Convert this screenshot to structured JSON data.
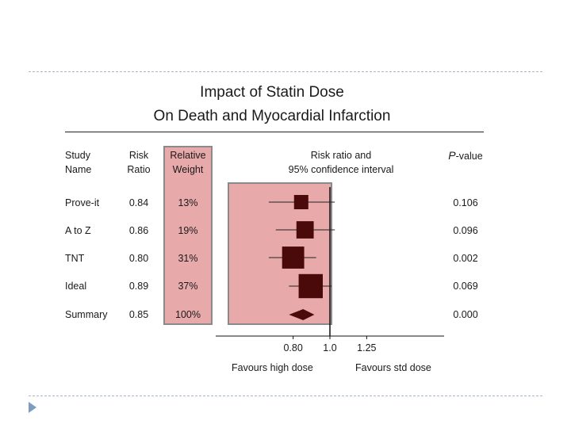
{
  "slide": {
    "title_line1": "Impact of Statin Dose",
    "title_line2": "On Death and Myocardial Infarction"
  },
  "headers": {
    "study_line1": "Study",
    "study_line2": "Name",
    "risk_line1": "Risk",
    "risk_line2": "Ratio",
    "weight_line1": "Relative",
    "weight_line2": "Weight",
    "ci_line1": "Risk ratio and",
    "ci_line2": "95% confidence interval",
    "p_prefix": "P",
    "p_suffix": "-value"
  },
  "rows": [
    {
      "name": "Prove-it",
      "ratio": "0.84",
      "weight": "13%",
      "p": "0.106"
    },
    {
      "name": "A to Z",
      "ratio": "0.86",
      "weight": "19%",
      "p": "0.096"
    },
    {
      "name": "TNT",
      "ratio": "0.80",
      "weight": "31%",
      "p": "0.002"
    },
    {
      "name": "Ideal",
      "ratio": "0.89",
      "weight": "37%",
      "p": "0.069"
    },
    {
      "name": "Summary",
      "ratio": "0.85",
      "weight": "100%",
      "p": "0.000"
    }
  ],
  "axis": {
    "tick_labels": [
      "0.80",
      "1.0",
      "1.25"
    ],
    "favours_left": "Favours high dose",
    "favours_right": "Favours std dose"
  },
  "colors": {
    "panel_fill": "#e8a9ab",
    "marker": "#4a0a0a",
    "dash_rule": "#a9b6c8",
    "bullet": "#7f9bbd"
  },
  "chart_data": {
    "type": "forest",
    "xscale": "log",
    "xlim": [
      0.5,
      2.0
    ],
    "xticks": [
      0.8,
      1.0,
      1.25
    ],
    "reference": 1.0,
    "studies": [
      {
        "name": "Prove-it",
        "rr": 0.84,
        "lo": 0.69,
        "hi": 1.03,
        "weight": 13
      },
      {
        "name": "A to Z",
        "rr": 0.86,
        "lo": 0.72,
        "hi": 1.03,
        "weight": 19
      },
      {
        "name": "TNT",
        "rr": 0.8,
        "lo": 0.69,
        "hi": 0.92,
        "weight": 31
      },
      {
        "name": "Ideal",
        "rr": 0.89,
        "lo": 0.78,
        "hi": 1.01,
        "weight": 37
      }
    ],
    "summary": {
      "name": "Summary",
      "rr": 0.85,
      "lo": 0.78,
      "hi": 0.91
    }
  }
}
